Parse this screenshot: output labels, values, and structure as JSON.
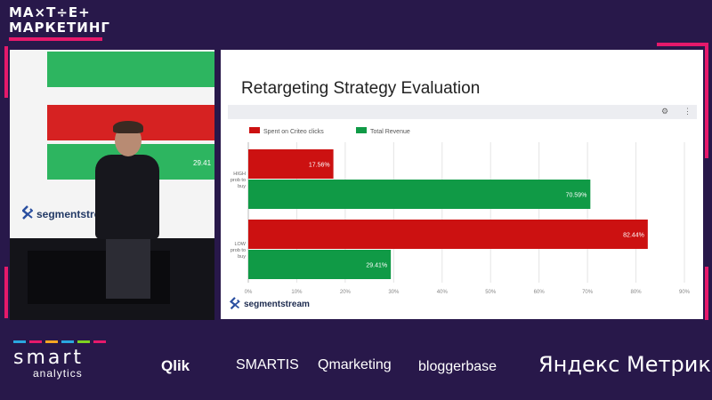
{
  "event_logo": {
    "line1": "MA×T÷E+",
    "line2": "МАРКЕТИНГ"
  },
  "camera": {
    "overlay_value": "29.41"
  },
  "slide": {
    "title": "Retargeting Strategy Evaluation",
    "brand": "segmentstream"
  },
  "chart_data": {
    "type": "bar",
    "orientation": "horizontal",
    "categories": [
      "HIGH prob to buy",
      "LOW prob to buy"
    ],
    "category_lines": [
      [
        "HIGH",
        "prob to",
        "buy"
      ],
      [
        "LOW",
        "prob to",
        "buy"
      ]
    ],
    "series": [
      {
        "name": "Spent on Criteo clicks",
        "color": "#cc1111",
        "values": [
          17.56,
          82.44
        ],
        "labels": [
          "17.56%",
          "82.44%"
        ]
      },
      {
        "name": "Total Revenue",
        "color": "#109a46",
        "values": [
          70.59,
          29.41
        ],
        "labels": [
          "70.59%",
          "29.41%"
        ]
      }
    ],
    "xlim": [
      0,
      90
    ],
    "xticks": [
      "0%",
      "10%",
      "20%",
      "30%",
      "40%",
      "50%",
      "60%",
      "70%",
      "80%",
      "90%"
    ],
    "legend_position": "top-left",
    "grid": true
  },
  "sponsors": {
    "smart_word": "smart",
    "smart_sub": "analytics",
    "items": [
      "Qlik",
      "SMARTIS",
      "Qmarketing",
      "bloggerbase",
      "Яндекс Метрика"
    ]
  },
  "colors": {
    "accent": "#e6196b",
    "background": "#28184a"
  },
  "icons": [
    "gear-icon",
    "more-vertical-icon",
    "segmentstream-logo-icon"
  ]
}
